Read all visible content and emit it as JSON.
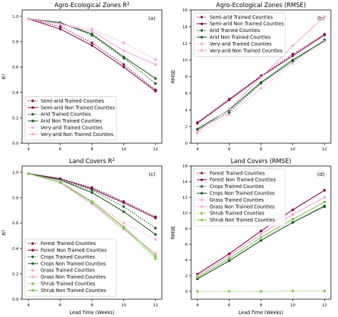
{
  "chart_data": [
    {
      "type": "line",
      "title": "Agro-Ecological Zones R$^2$",
      "panel_tag": "(a)",
      "xlabel": "",
      "ylabel": "R$^2$",
      "x": [
        4,
        6,
        8,
        10,
        12
      ],
      "x_ticks": [
        "4",
        "6",
        "8",
        "10",
        "12"
      ],
      "ylim": [
        0.0,
        1.05
      ],
      "y_ticks": [
        "0.0",
        "0.2",
        "0.4",
        "0.6",
        "0.8",
        "1.0"
      ],
      "y_tick_values": [
        0,
        0.2,
        0.4,
        0.6,
        0.8,
        1.0
      ],
      "legend_position": "bottom-left",
      "grid": false,
      "series": [
        {
          "name": "Semi-arid Trained Counties",
          "values": [
            0.98,
            0.92,
            0.79,
            0.62,
            0.42
          ],
          "color": "#8b0a50",
          "dash": "dotted"
        },
        {
          "name": "Semi-arid Non Trained Counties",
          "values": [
            0.98,
            0.9,
            0.77,
            0.6,
            0.41
          ],
          "color": "#8b0a50",
          "dash": "solid"
        },
        {
          "name": "Arid Trained Counties",
          "values": [
            0.98,
            0.95,
            0.85,
            0.67,
            0.47
          ],
          "color": "#1b5e20",
          "dash": "dotted"
        },
        {
          "name": "Arid Non Trained Counties",
          "values": [
            0.98,
            0.95,
            0.86,
            0.68,
            0.51
          ],
          "color": "#1b5e20",
          "dash": "solid"
        },
        {
          "name": "Very-arid Trained Counties",
          "values": [
            0.98,
            0.94,
            0.9,
            0.79,
            0.66
          ],
          "color": "#f4a6d7",
          "dash": "dotted"
        },
        {
          "name": "Very-arid Non Trained Counties",
          "values": [
            0.98,
            0.94,
            0.88,
            0.73,
            0.62
          ],
          "color": "#f4a6d7",
          "dash": "solid"
        }
      ]
    },
    {
      "type": "line",
      "title": "Agro-Ecological Zones (RMSE)",
      "panel_tag": "(b)",
      "xlabel": "",
      "ylabel": "RMSE",
      "x": [
        4,
        6,
        8,
        10,
        12
      ],
      "x_ticks": [
        "4",
        "6",
        "8",
        "10",
        "12"
      ],
      "ylim": [
        0,
        16
      ],
      "y_ticks": [
        "0",
        "2",
        "4",
        "6",
        "8",
        "10",
        "12",
        "14",
        "16"
      ],
      "y_tick_values": [
        0,
        2,
        4,
        6,
        8,
        10,
        12,
        14,
        16
      ],
      "legend_position": "top-left",
      "grid": false,
      "series": [
        {
          "name": "Semi-arid Trained Counties",
          "values": [
            2.5,
            5.3,
            8.1,
            10.7,
            13.1
          ],
          "color": "#8b0a50",
          "dash": "dotted"
        },
        {
          "name": "Semi-arid Non Trained Counties",
          "values": [
            2.4,
            5.2,
            8.0,
            10.5,
            13.0
          ],
          "color": "#8b0a50",
          "dash": "solid"
        },
        {
          "name": "Arid Trained Counties",
          "values": [
            1.6,
            3.7,
            7.2,
            9.8,
            12.4
          ],
          "color": "#1b5e20",
          "dash": "dotted"
        },
        {
          "name": "Arid Non Trained Counties",
          "values": [
            1.7,
            4.0,
            7.3,
            10.0,
            12.3
          ],
          "color": "#1b5e20",
          "dash": "solid"
        },
        {
          "name": "Very-arid Trained Counties",
          "values": [
            1.2,
            3.4,
            6.6,
            9.6,
            12.2
          ],
          "color": "#f4a6d7",
          "dash": "dotted"
        },
        {
          "name": "Very-arid Non Trained Counties",
          "values": [
            1.4,
            4.1,
            7.9,
            11.7,
            15.2
          ],
          "color": "#f4a6d7",
          "dash": "solid"
        }
      ]
    },
    {
      "type": "line",
      "title": "Land Covers R$^2$",
      "panel_tag": "(c)",
      "xlabel": "Lead Time (Weeks)",
      "ylabel": "R$^2$",
      "x": [
        4,
        6,
        8,
        10,
        12
      ],
      "x_ticks": [
        "4",
        "6",
        "8",
        "10",
        "12"
      ],
      "ylim": [
        0.0,
        1.05
      ],
      "y_ticks": [
        "0.0",
        "0.2",
        "0.4",
        "0.6",
        "0.8",
        "1.0"
      ],
      "y_tick_values": [
        0,
        0.2,
        0.4,
        0.6,
        0.8,
        1.0
      ],
      "legend_position": "bottom-left",
      "grid": false,
      "series": [
        {
          "name": "Forest Trained Counties",
          "values": [
            0.99,
            0.95,
            0.88,
            0.77,
            0.65
          ],
          "color": "#8b0a50",
          "dash": "dotted"
        },
        {
          "name": "Forest Non Trained Counties",
          "values": [
            0.99,
            0.95,
            0.87,
            0.76,
            0.64
          ],
          "color": "#8b0a50",
          "dash": "solid"
        },
        {
          "name": "Crops Trained Counties",
          "values": [
            0.99,
            0.94,
            0.86,
            0.73,
            0.56
          ],
          "color": "#1b5e20",
          "dash": "dotted"
        },
        {
          "name": "Crops Non Trained Counties",
          "values": [
            0.99,
            0.94,
            0.84,
            0.69,
            0.51
          ],
          "color": "#1b5e20",
          "dash": "solid"
        },
        {
          "name": "Grass Trained Counties",
          "values": [
            0.99,
            0.93,
            0.77,
            0.6,
            0.47
          ],
          "color": "#f4a6d7",
          "dash": "dotted"
        },
        {
          "name": "Grass Non Trained Counties",
          "values": [
            0.99,
            0.92,
            0.75,
            0.55,
            0.36
          ],
          "color": "#f4a6d7",
          "dash": "solid"
        },
        {
          "name": "Shrub Trained Counties",
          "values": [
            0.99,
            0.92,
            0.76,
            0.56,
            0.32
          ],
          "color": "#7cc242",
          "dash": "dotted"
        },
        {
          "name": "Shrub Non Trained Counties",
          "values": [
            0.99,
            0.92,
            0.77,
            0.57,
            0.34
          ],
          "color": "#7cc242",
          "dash": "solid"
        }
      ]
    },
    {
      "type": "line",
      "title": "Land Covers (RMSE)",
      "panel_tag": "(d)",
      "xlabel": "Lead Time (Weeks)",
      "ylabel": "RMSE",
      "x": [
        4,
        6,
        8,
        10,
        12
      ],
      "x_ticks": [
        "4",
        "6",
        "8",
        "10",
        "12"
      ],
      "ylim": [
        -1,
        16
      ],
      "y_ticks": [
        "0",
        "2",
        "4",
        "6",
        "8",
        "10",
        "12",
        "14",
        "16"
      ],
      "y_tick_values": [
        0,
        2,
        4,
        6,
        8,
        10,
        12,
        14,
        16
      ],
      "legend_position": "top-left",
      "grid": false,
      "series": [
        {
          "name": "Forest Trained Counties",
          "values": [
            2.2,
            4.8,
            7.7,
            10.4,
            12.9
          ],
          "color": "#8b0a50",
          "dash": "dotted"
        },
        {
          "name": "Forest Non Trained Counties",
          "values": [
            2.2,
            4.8,
            7.7,
            10.4,
            12.9
          ],
          "color": "#8b0a50",
          "dash": "solid"
        },
        {
          "name": "Crops Trained Counties",
          "values": [
            1.6,
            3.9,
            6.5,
            8.8,
            10.8
          ],
          "color": "#1b5e20",
          "dash": "dotted"
        },
        {
          "name": "Crops Non Trained Counties",
          "values": [
            1.6,
            3.9,
            6.5,
            8.8,
            10.9
          ],
          "color": "#1b5e20",
          "dash": "solid"
        },
        {
          "name": "Grass Trained Counties",
          "values": [
            2.0,
            4.5,
            7.3,
            9.8,
            12.0
          ],
          "color": "#f4a6d7",
          "dash": "dotted"
        },
        {
          "name": "Grass Non Trained Counties",
          "values": [
            2.0,
            4.5,
            7.3,
            9.8,
            12.0
          ],
          "color": "#f4a6d7",
          "dash": "solid"
        },
        {
          "name": "Shrub Trained Counties",
          "values": [
            0.0,
            0.0,
            0.0,
            0.05,
            0.05
          ],
          "color": "#7cc242",
          "dash": "dotted"
        },
        {
          "name": "Shrub Non Trained Counties",
          "values": [
            1.8,
            4.2,
            6.9,
            9.2,
            11.4
          ],
          "color": "#7cc242",
          "dash": "solid"
        }
      ]
    }
  ]
}
